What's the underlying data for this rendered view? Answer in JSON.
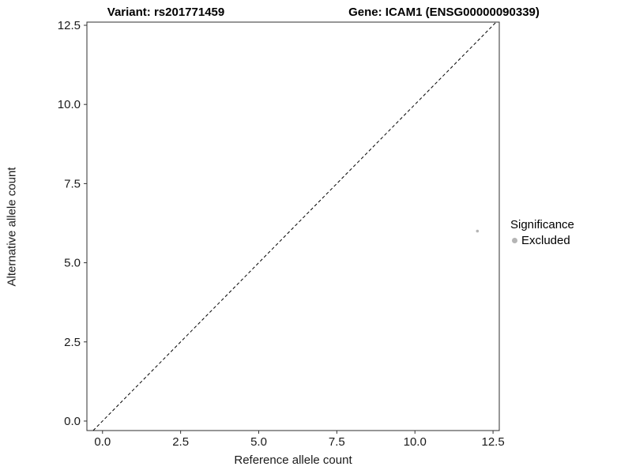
{
  "chart_data": {
    "type": "scatter",
    "title_left": "Variant: rs201771459",
    "title_right": "Gene: ICAM1 (ENSG00000090339)",
    "xlabel": "Reference allele count",
    "ylabel": "Alternative allele count",
    "xlim": [
      -0.5,
      12.7
    ],
    "ylim": [
      -0.3,
      12.6
    ],
    "x_ticks": [
      0.0,
      2.5,
      5.0,
      7.5,
      10.0,
      12.5
    ],
    "x_tick_labels": [
      "0.0",
      "2.5",
      "5.0",
      "7.5",
      "10.0",
      "12.5"
    ],
    "y_ticks": [
      0.0,
      2.5,
      5.0,
      7.5,
      10.0,
      12.5
    ],
    "y_tick_labels": [
      "0.0",
      "2.5",
      "5.0",
      "7.5",
      "10.0",
      "12.5"
    ],
    "grid": false,
    "panel_border_color": "#2f2f2f",
    "reference_line": {
      "type": "diagonal",
      "equation": "y = x",
      "style": "dashed",
      "color": "#000000"
    },
    "series": [
      {
        "name": "Excluded",
        "color": "#b5b5b5",
        "points": [
          {
            "x": 12,
            "y": 6
          }
        ]
      }
    ],
    "legend": {
      "title": "Significance",
      "position": "right",
      "items": [
        {
          "label": "Excluded",
          "color": "#b5b5b5"
        }
      ]
    }
  }
}
